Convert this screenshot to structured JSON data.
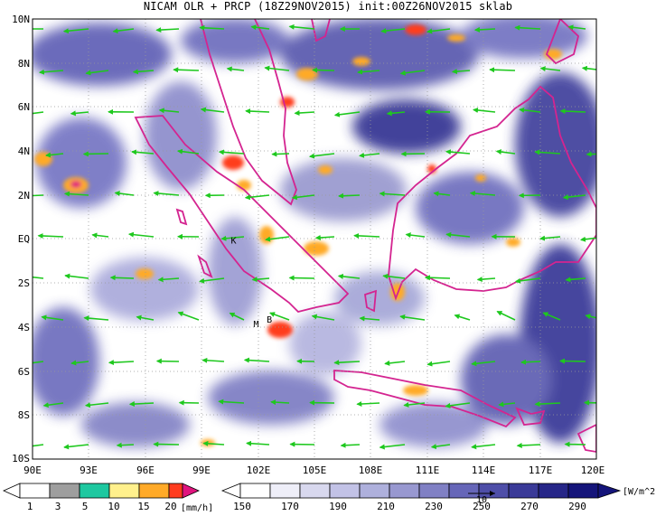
{
  "title": "NICAM OLR + PRCP (18Z29NOV2015) init:00Z26NOV2015 sklab",
  "map": {
    "lon_labels": [
      "90E",
      "93E",
      "96E",
      "99E",
      "102E",
      "105E",
      "108E",
      "111E",
      "114E",
      "117E",
      "120E"
    ],
    "lat_labels": [
      "10N",
      "8N",
      "6N",
      "4N",
      "2N",
      "EQ",
      "2S",
      "4S",
      "6S",
      "8S",
      "10S"
    ],
    "lon_range": [
      90,
      120
    ],
    "lat_range": [
      10,
      -10
    ],
    "grid": "dotted",
    "place_labels": [
      {
        "text": "K",
        "lon": 100.7,
        "lat": -0.2
      },
      {
        "text": "B",
        "lon": 102.6,
        "lat": -3.8
      },
      {
        "text": "M",
        "lon": 101.9,
        "lat": -4.0
      }
    ],
    "colors": {
      "wind_vectors": "#1ec81e",
      "coastline": "#d42490",
      "grid": "#999999"
    }
  },
  "prcp_legend": {
    "values": [
      "1",
      "3",
      "5",
      "10",
      "15",
      "20"
    ],
    "unit": "[mm/h]",
    "colors": [
      "#ffffff",
      "#9e9e9e",
      "#1ec8a0",
      "#fff08c",
      "#ffaa28",
      "#ff3c1e",
      "#e0147e"
    ]
  },
  "olr_legend": {
    "values": [
      "150",
      "170",
      "190",
      "210",
      "230",
      "250",
      "270",
      "290"
    ],
    "unit": "[W/m^2]",
    "colors": [
      "#ffffff",
      "#eeeef8",
      "#d8d8ee",
      "#c2c2e6",
      "#aeb0dc",
      "#9898d0",
      "#8080c4",
      "#6666b8",
      "#4e4ea8",
      "#3a3a98",
      "#262688",
      "#14147a"
    ]
  },
  "vector_reference": {
    "label": "10"
  }
}
